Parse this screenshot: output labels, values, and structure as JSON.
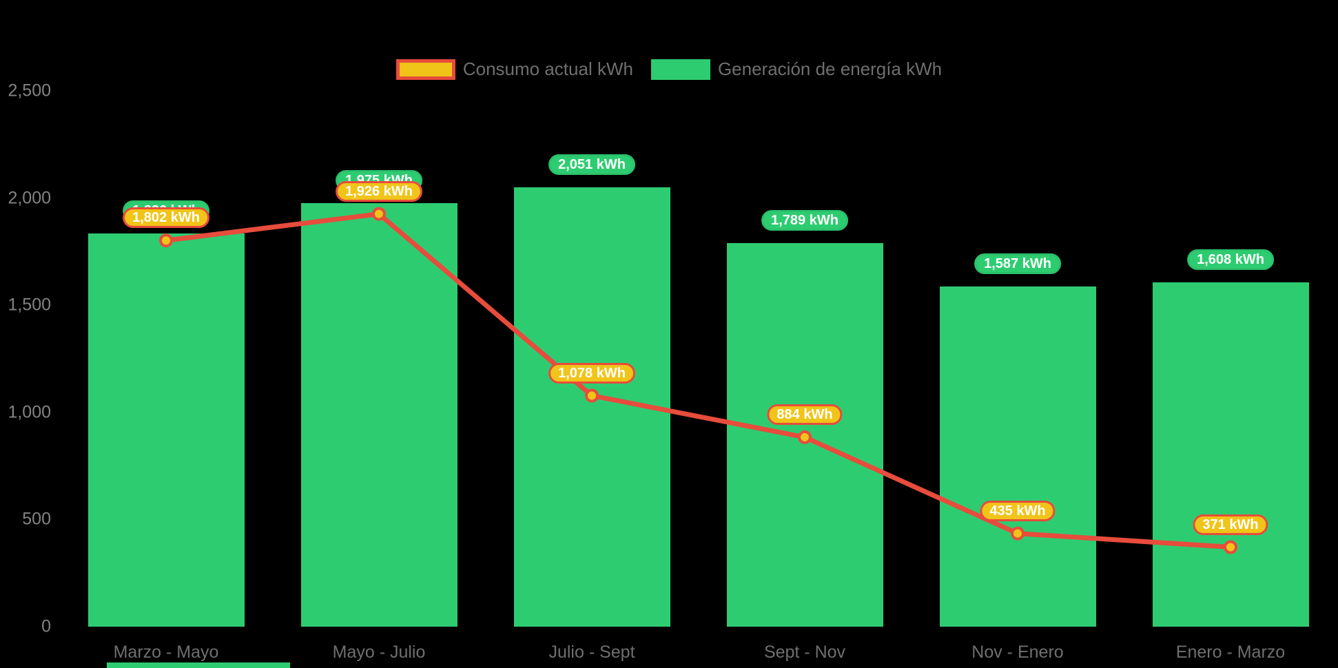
{
  "legend": {
    "items": [
      {
        "label": "Consumo actual kWh",
        "swatch_fill": "#f0c419",
        "swatch_border": "#e74c3c"
      },
      {
        "label": "Generación de energía kWh",
        "swatch_fill": "#2ecc71",
        "swatch_border": "#2ecc71"
      }
    ]
  },
  "chart_data": {
    "type": "bar",
    "subtype": "bars-with-line-overlay",
    "title": "",
    "xlabel": "",
    "ylabel": "",
    "categories": [
      "Marzo - Mayo",
      "Mayo - Julio",
      "Julio - Sept",
      "Sept - Nov",
      "Nov - Enero",
      "Enero - Marzo"
    ],
    "series": [
      {
        "name": "Generación de energía kWh",
        "type": "bar",
        "color": "#2ecc71",
        "values": [
          1836,
          1975,
          2051,
          1789,
          1587,
          1608
        ],
        "data_labels": [
          "1,836 kWh",
          "1,975 kWh",
          "2,051 kWh",
          "1,789 kWh",
          "1,587 kWh",
          "1,608 kWh"
        ]
      },
      {
        "name": "Consumo actual kWh",
        "type": "line",
        "line_color": "#e74c3c",
        "point_fill": "#f0c419",
        "point_border": "#e74c3c",
        "values": [
          1802,
          1926,
          1078,
          884,
          435,
          371
        ],
        "data_labels": [
          "1,802 kWh",
          "1,926 kWh",
          "1,078 kWh",
          "884 kWh",
          "435 kWh",
          "371 kWh"
        ]
      }
    ],
    "ylim": [
      0,
      2500
    ],
    "yticks": [
      {
        "value": 2500,
        "label": "2,500"
      },
      {
        "value": 2000,
        "label": "2,000"
      },
      {
        "value": 1500,
        "label": "1,500"
      },
      {
        "value": 1000,
        "label": "1,000"
      },
      {
        "value": 500,
        "label": "500"
      },
      {
        "value": 0,
        "label": "0"
      }
    ],
    "grid": false,
    "legend_position": "top-center"
  },
  "colors": {
    "background": "#000000",
    "axis_text": "#7c7c7c",
    "bar_green": "#2ecc71",
    "green_pill_border": "#2bc16b",
    "line_red": "#e74c3c",
    "label_gold": "#f0c419",
    "pill_text": "#ffffff"
  }
}
